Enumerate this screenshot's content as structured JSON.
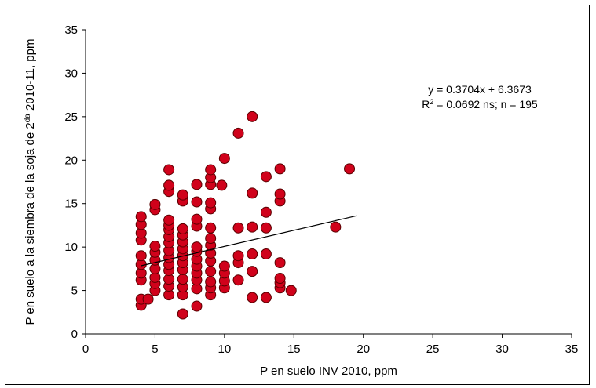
{
  "chart_data": {
    "type": "scatter",
    "xlabel": "P en suelo INV 2010, ppm",
    "ylabel_main": "P en suelo a la siembra de la soja de 2",
    "ylabel_sup": "da",
    "ylabel_tail": " 2010-11, ppm",
    "xlim": [
      0,
      35
    ],
    "ylim": [
      0,
      35
    ],
    "xticks": [
      0,
      5,
      10,
      15,
      20,
      25,
      30,
      35
    ],
    "yticks": [
      0,
      5,
      10,
      15,
      20,
      25,
      30,
      35
    ],
    "grid": false,
    "marker_color": "#d0021b",
    "marker_edge": "#5a0000",
    "trendline": {
      "slope": 0.3704,
      "intercept": 6.3673,
      "x_range": [
        4,
        19.5
      ]
    },
    "annotation_line1": "y = 0.3704x + 6.3673",
    "annotation_line2_prefix": "R",
    "annotation_line2_sup": "2",
    "annotation_line2_suffix": " = 0.0692 ns; n = 195",
    "points": [
      [
        4,
        3.3
      ],
      [
        4,
        4
      ],
      [
        4,
        6.2
      ],
      [
        4,
        7
      ],
      [
        4,
        8
      ],
      [
        4,
        9
      ],
      [
        4,
        10.8
      ],
      [
        4,
        11.6
      ],
      [
        4,
        12.6
      ],
      [
        4,
        13.5
      ],
      [
        4.5,
        4
      ],
      [
        5,
        5
      ],
      [
        5,
        5.8
      ],
      [
        5,
        6.5
      ],
      [
        5,
        7.5
      ],
      [
        5,
        8.5
      ],
      [
        5,
        9.4
      ],
      [
        5,
        10.1
      ],
      [
        5,
        14.3
      ],
      [
        5,
        14.9
      ],
      [
        6,
        4.5
      ],
      [
        6,
        5.5
      ],
      [
        6,
        6.3
      ],
      [
        6,
        7.3
      ],
      [
        6,
        8
      ],
      [
        6,
        8.8
      ],
      [
        6,
        9.6
      ],
      [
        6,
        10.5
      ],
      [
        6,
        11.2
      ],
      [
        6,
        12
      ],
      [
        6,
        12.5
      ],
      [
        6,
        13.1
      ],
      [
        6,
        16.4
      ],
      [
        6,
        17.1
      ],
      [
        6,
        18.9
      ],
      [
        7,
        2.3
      ],
      [
        7,
        4.5
      ],
      [
        7,
        5.4
      ],
      [
        7,
        6.3
      ],
      [
        7,
        7.4
      ],
      [
        7,
        8.2
      ],
      [
        7,
        9
      ],
      [
        7,
        9.8
      ],
      [
        7,
        10.6
      ],
      [
        7,
        11.4
      ],
      [
        7,
        12.1
      ],
      [
        7,
        15.3
      ],
      [
        7,
        16
      ],
      [
        8,
        3.2
      ],
      [
        8,
        5.2
      ],
      [
        8,
        6.2
      ],
      [
        8,
        7
      ],
      [
        8,
        7.8
      ],
      [
        8,
        8.6
      ],
      [
        8,
        9.5
      ],
      [
        8,
        10
      ],
      [
        8,
        12.4
      ],
      [
        8,
        13.2
      ],
      [
        8,
        15.2
      ],
      [
        8,
        17.2
      ],
      [
        9,
        4.5
      ],
      [
        9,
        5.3
      ],
      [
        9,
        6
      ],
      [
        9,
        7.2
      ],
      [
        9,
        8.4
      ],
      [
        9,
        9.3
      ],
      [
        9,
        10.2
      ],
      [
        9,
        11
      ],
      [
        9,
        12.2
      ],
      [
        9,
        14.4
      ],
      [
        9,
        15.1
      ],
      [
        9,
        17.2
      ],
      [
        9,
        18
      ],
      [
        9,
        18.9
      ],
      [
        9.8,
        17.1
      ],
      [
        10,
        5.3
      ],
      [
        10,
        6.1
      ],
      [
        10,
        7
      ],
      [
        10,
        7.8
      ],
      [
        10,
        20.2
      ],
      [
        11,
        6.2
      ],
      [
        11,
        8.2
      ],
      [
        11,
        9
      ],
      [
        11,
        12.2
      ],
      [
        11,
        23.1
      ],
      [
        12,
        4.2
      ],
      [
        12,
        7.2
      ],
      [
        12,
        9.2
      ],
      [
        12,
        12.3
      ],
      [
        12,
        16.2
      ],
      [
        12,
        25
      ],
      [
        13,
        4.2
      ],
      [
        13,
        9.2
      ],
      [
        13,
        12.2
      ],
      [
        13,
        14
      ],
      [
        13,
        18.1
      ],
      [
        14,
        5.3
      ],
      [
        14,
        5.9
      ],
      [
        14,
        6.4
      ],
      [
        14,
        8.2
      ],
      [
        14,
        15.3
      ],
      [
        14,
        16.1
      ],
      [
        14,
        19
      ],
      [
        14.8,
        5
      ],
      [
        18,
        12.3
      ],
      [
        19,
        19
      ]
    ]
  }
}
